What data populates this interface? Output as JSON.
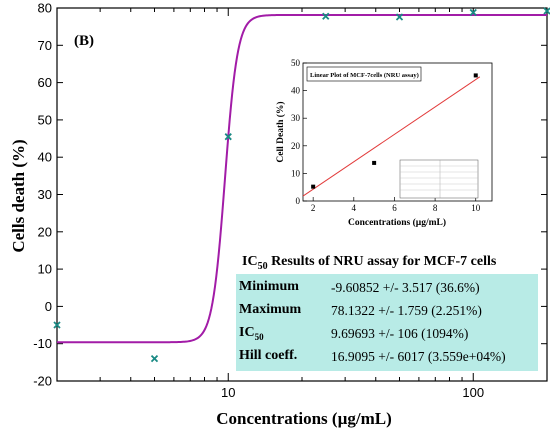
{
  "panel_label": "(B)",
  "chart_data": [
    {
      "type": "scatter",
      "scale_x": "log",
      "xlabel": "Concentrations (µg/mL)",
      "ylabel": "Cells death (%)",
      "xlim": [
        2,
        200
      ],
      "ylim": [
        -20,
        80
      ],
      "x_ticks": [
        10,
        100
      ],
      "x_tick_labels": [
        "10",
        "100"
      ],
      "y_ticks": [
        -20,
        -10,
        0,
        10,
        20,
        30,
        40,
        50,
        60,
        70,
        80
      ],
      "y_tick_labels": [
        "-20",
        "-10",
        "0",
        "10",
        "20",
        "30",
        "40",
        "50",
        "60",
        "70",
        "80"
      ],
      "grid": false,
      "series": [
        {
          "kind": "points",
          "marker": "x",
          "color": "#1a8a84",
          "x": [
            2,
            5,
            10,
            25,
            50,
            100,
            200
          ],
          "y": [
            -5,
            -14,
            45.5,
            77.8,
            77.6,
            78.8,
            79.2
          ]
        },
        {
          "kind": "fit",
          "color": "#a21ca7",
          "model": "hill",
          "bottom": -9.60852,
          "top": 78.1322,
          "ic50": 9.69693,
          "hill": 16.9095
        }
      ]
    },
    {
      "type": "scatter",
      "title": "Linear Plot of MCF-7cells (NRU assay)",
      "xlabel": "Concentrations (µg/mL)",
      "ylabel": "Cell Death (%)",
      "xlim": [
        1.5,
        10.8
      ],
      "ylim": [
        0,
        50
      ],
      "x_ticks": [
        2,
        4,
        6,
        8,
        10
      ],
      "x_tick_labels": [
        "2",
        "4",
        "6",
        "8",
        "10"
      ],
      "y_ticks": [
        0,
        10,
        20,
        30,
        40,
        50
      ],
      "y_tick_labels": [
        "0",
        "10",
        "20",
        "30",
        "40",
        "50"
      ],
      "series": [
        {
          "kind": "points",
          "marker": "square",
          "color": "#000000",
          "x": [
            2,
            5,
            10
          ],
          "y": [
            5.2,
            13.8,
            45.5
          ]
        },
        {
          "kind": "line",
          "color": "#e23b3b",
          "x": [
            1.5,
            10.2
          ],
          "y": [
            1.8,
            45.0
          ]
        }
      ]
    }
  ],
  "results": {
    "title_prefix": "IC",
    "title_sub": "50",
    "title_suffix": " Results of NRU assay for MCF-7 cells",
    "rows": [
      {
        "label": "Minimum",
        "label_sub": "",
        "value": "-9.60852 +/- 3.517 (36.6%)"
      },
      {
        "label": "Maximum",
        "label_sub": "",
        "value": "78.1322 +/- 1.759 (2.251%)"
      },
      {
        "label": "IC",
        "label_sub": "50",
        "value": "9.69693 +/- 106 (1094%)"
      },
      {
        "label": "Hill coeff.",
        "label_sub": "",
        "value": "16.9095 +/- 6017 (3.559e+04%)"
      }
    ],
    "colors": {
      "table_bg": "#b8ebe6"
    }
  }
}
